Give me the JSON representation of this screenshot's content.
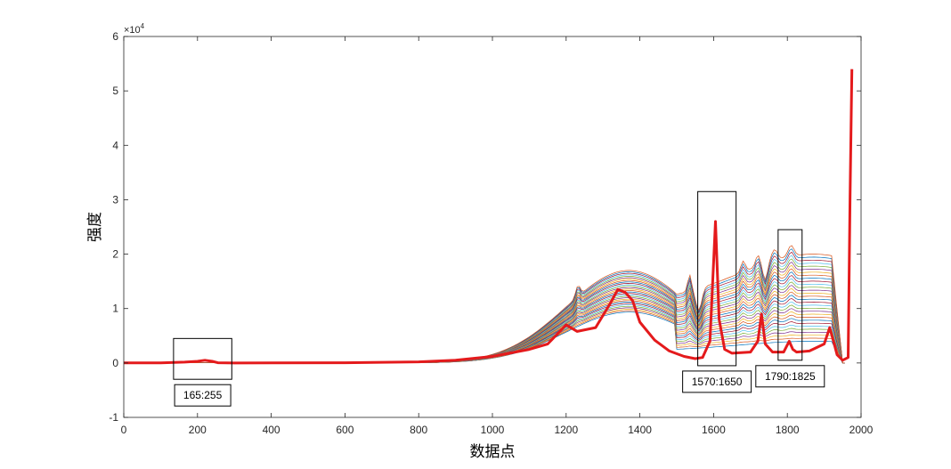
{
  "chart_data": {
    "type": "line",
    "xlabel": "数据点",
    "ylabel": "强度",
    "xlim": [
      0,
      2000
    ],
    "ylim": [
      -1,
      6
    ],
    "y_exponent_label": "×10",
    "y_exponent_power": "4",
    "x_ticks": [
      "0",
      "200",
      "400",
      "600",
      "800",
      "1000",
      "1200",
      "1400",
      "1600",
      "1800",
      "2000"
    ],
    "y_ticks": [
      "-1",
      "0",
      "1",
      "2",
      "3",
      "4",
      "5",
      "6"
    ],
    "grid": false,
    "highlight_series": {
      "color": "#e41a1c",
      "points": [
        [
          0,
          0.02
        ],
        [
          100,
          0.03
        ],
        [
          165,
          0.15
        ],
        [
          200,
          0.3
        ],
        [
          220,
          0.5
        ],
        [
          240,
          0.3
        ],
        [
          255,
          0.05
        ],
        [
          300,
          0.0
        ],
        [
          400,
          0.02
        ],
        [
          600,
          0.05
        ],
        [
          800,
          0.2
        ],
        [
          900,
          0.5
        ],
        [
          1000,
          1.2
        ],
        [
          1100,
          2.5
        ],
        [
          1150,
          3.5
        ],
        [
          1200,
          7.0
        ],
        [
          1230,
          5.8
        ],
        [
          1280,
          6.5
        ],
        [
          1320,
          11.0
        ],
        [
          1340,
          13.5
        ],
        [
          1360,
          13.0
        ],
        [
          1380,
          11.5
        ],
        [
          1400,
          7.5
        ],
        [
          1440,
          4.2
        ],
        [
          1480,
          2.2
        ],
        [
          1520,
          1.2
        ],
        [
          1550,
          0.8
        ],
        [
          1570,
          1.0
        ],
        [
          1590,
          4.0
        ],
        [
          1605,
          26.0
        ],
        [
          1615,
          8.0
        ],
        [
          1630,
          2.5
        ],
        [
          1650,
          1.8
        ],
        [
          1700,
          2.0
        ],
        [
          1720,
          4.0
        ],
        [
          1730,
          9.0
        ],
        [
          1740,
          3.5
        ],
        [
          1760,
          2.0
        ],
        [
          1790,
          2.0
        ],
        [
          1805,
          4.0
        ],
        [
          1815,
          2.5
        ],
        [
          1825,
          2.0
        ],
        [
          1860,
          2.2
        ],
        [
          1900,
          3.5
        ],
        [
          1915,
          6.5
        ],
        [
          1925,
          4.0
        ],
        [
          1935,
          1.5
        ],
        [
          1950,
          0.5
        ],
        [
          1965,
          1.0
        ],
        [
          1970,
          30.0
        ],
        [
          1975,
          54.0
        ]
      ]
    },
    "background_series": {
      "count": 30,
      "colors": [
        "#0072bd",
        "#d95319",
        "#edb120",
        "#7e2f8e",
        "#77ac30",
        "#4dbeee",
        "#a2142f"
      ]
    },
    "annotations": [
      {
        "label": "165:255",
        "x_range": [
          135,
          293
        ],
        "y_range": [
          -3,
          4.5
        ]
      },
      {
        "label": "1570:1650",
        "x_range": [
          1557,
          1661
        ],
        "y_range": [
          -0.5,
          31.5
        ]
      },
      {
        "label": "1790:1825",
        "x_range": [
          1775,
          1840
        ],
        "y_range": [
          0.5,
          24.5
        ]
      }
    ]
  }
}
